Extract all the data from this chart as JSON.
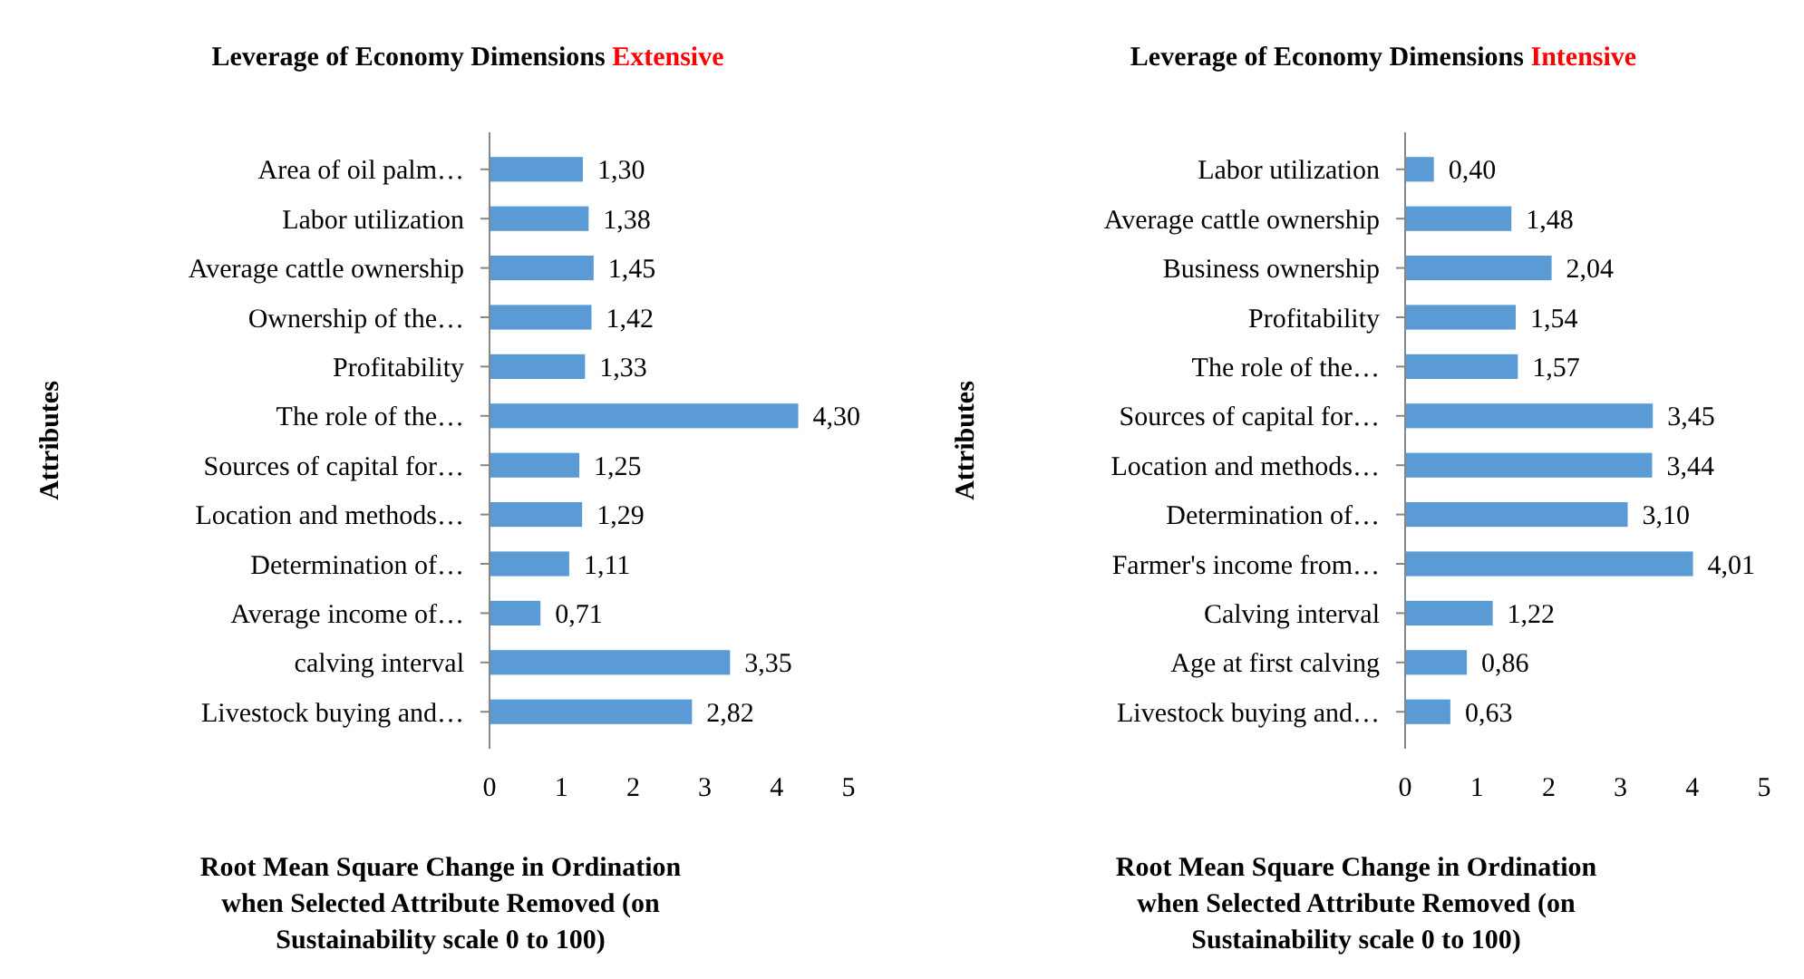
{
  "chart_data": [
    {
      "type": "bar",
      "orientation": "horizontal",
      "title": "Leverage of  Economy Dimensions Extensive",
      "ylabel": "Attributes",
      "xlabel": "Root Mean Square Change in Ordination when Selected Attribute Removed (on Sustainability scale 0 to 100)",
      "categories": [
        "Area of oil palm…",
        "Labor utilization",
        "Average cattle ownership",
        "Ownership of the…",
        "Profitability",
        "The role of the…",
        "Sources of capital for…",
        "Location and methods…",
        "Determination of…",
        "Average income of…",
        "calving interval",
        "Livestock buying and…"
      ],
      "values": [
        1.3,
        1.38,
        1.45,
        1.42,
        1.33,
        4.3,
        1.25,
        1.29,
        1.11,
        0.71,
        3.35,
        2.82
      ],
      "value_labels": [
        "1,30",
        "1,38",
        "1,45",
        "1,42",
        "1,33",
        "4,30",
        "1,25",
        "1,29",
        "1,11",
        "0,71",
        "3,35",
        "2,82"
      ],
      "color": "#5b9bd5",
      "xlim": [
        0,
        5
      ],
      "xticks": [
        0,
        1,
        2,
        3,
        4,
        5
      ],
      "grid": false
    },
    {
      "type": "bar",
      "orientation": "horizontal",
      "title": "Leverage of Economy Dimensions Intensive",
      "ylabel": "Attributes",
      "xlabel": "Root Mean Square Change in Ordination when Selected Attribute Removed (on Sustainability scale 0 to 100)",
      "categories": [
        "Labor utilization",
        "Average cattle ownership",
        "Business ownership",
        "Profitability",
        "The role of the…",
        "Sources of capital for…",
        "Location and methods…",
        "Determination of…",
        "Farmer's income from…",
        "Calving interval",
        "Age at first calving",
        "Livestock buying and…"
      ],
      "values": [
        0.4,
        1.48,
        2.04,
        1.54,
        1.57,
        3.45,
        3.44,
        3.1,
        4.01,
        1.22,
        0.86,
        0.63
      ],
      "value_labels": [
        "0,40",
        "1,48",
        "2,04",
        "1,54",
        "1,57",
        "3,45",
        "3,44",
        "3,10",
        "4,01",
        "1,22",
        "0,86",
        "0,63"
      ],
      "color": "#5b9bd5",
      "xlim": [
        0,
        5
      ],
      "xticks": [
        0,
        1,
        2,
        3,
        4,
        5
      ],
      "grid": false
    }
  ]
}
